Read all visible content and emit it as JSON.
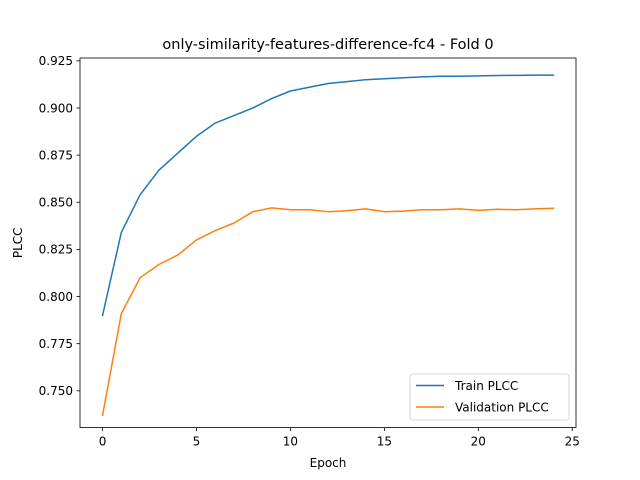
{
  "chart_data": {
    "type": "line",
    "title": "only-similarity-features-difference-fc4 - Fold 0",
    "xlabel": "Epoch",
    "ylabel": "PLCC",
    "xlim": [
      -1.2,
      25.2
    ],
    "ylim": [
      0.7305,
      0.9265
    ],
    "xticks": [
      0,
      5,
      10,
      15,
      20,
      25
    ],
    "yticks": [
      0.75,
      0.775,
      0.8,
      0.825,
      0.85,
      0.875,
      0.9,
      0.925
    ],
    "ytick_labels": [
      "0.750",
      "0.775",
      "0.800",
      "0.825",
      "0.850",
      "0.875",
      "0.900",
      "0.925"
    ],
    "grid": false,
    "legend_position": "lower-right",
    "x": [
      0,
      1,
      2,
      3,
      4,
      5,
      6,
      7,
      8,
      9,
      10,
      11,
      12,
      13,
      14,
      15,
      16,
      17,
      18,
      19,
      20,
      21,
      22,
      23,
      24
    ],
    "series": [
      {
        "name": "Train PLCC",
        "color": "#1f77b4",
        "values": [
          0.79,
          0.834,
          0.854,
          0.867,
          0.876,
          0.885,
          0.892,
          0.896,
          0.9,
          0.905,
          0.909,
          0.911,
          0.913,
          0.914,
          0.915,
          0.9155,
          0.916,
          0.9165,
          0.9168,
          0.9168,
          0.917,
          0.9172,
          0.9173,
          0.9174,
          0.9174
        ]
      },
      {
        "name": "Validation PLCC",
        "color": "#ff7f0e",
        "values": [
          0.737,
          0.791,
          0.81,
          0.817,
          0.822,
          0.83,
          0.835,
          0.839,
          0.845,
          0.847,
          0.846,
          0.846,
          0.845,
          0.8455,
          0.8465,
          0.845,
          0.8453,
          0.846,
          0.846,
          0.8465,
          0.8457,
          0.8463,
          0.846,
          0.8465,
          0.8468
        ]
      }
    ]
  }
}
